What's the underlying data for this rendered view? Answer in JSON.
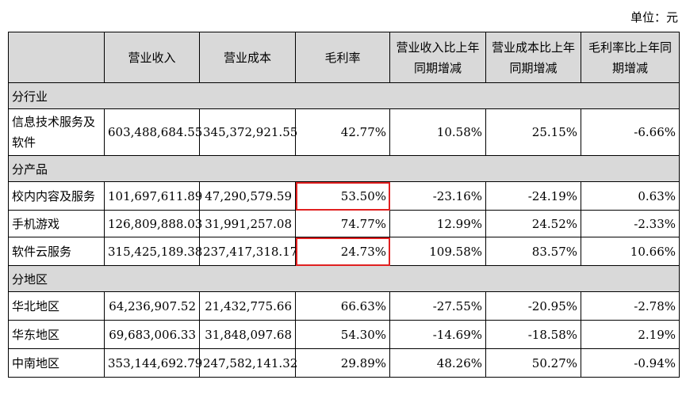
{
  "unit_label": "单位：元",
  "highlight_color": "#e02020",
  "header_bg": "#d9d9d9",
  "columns": [
    "",
    "营业收入",
    "营业成本",
    "毛利率",
    "营业收入比上年同期增减",
    "营业成本比上年同期增减",
    "毛利率比上年同期增减"
  ],
  "sections": [
    {
      "title": "分行业",
      "rows": [
        [
          "信息技术服务及软件",
          "603,488,684.55",
          "345,372,921.55",
          "42.77%",
          "10.58%",
          "25.15%",
          "-6.66%"
        ]
      ]
    },
    {
      "title": "分产品",
      "rows": [
        [
          "校内内容及服务",
          "101,697,611.89",
          "47,290,579.59",
          "53.50%",
          "-23.16%",
          "-24.19%",
          "0.63%"
        ],
        [
          "手机游戏",
          "126,809,888.03",
          "31,991,257.08",
          "74.77%",
          "12.99%",
          "24.52%",
          "-2.33%"
        ],
        [
          "软件云服务",
          "315,425,189.38",
          "237,417,318.17",
          "24.73%",
          "109.58%",
          "83.57%",
          "10.66%"
        ]
      ]
    },
    {
      "title": "分地区",
      "rows": [
        [
          "华北地区",
          "64,236,907.52",
          "21,432,775.66",
          "66.63%",
          "-27.55%",
          "-20.95%",
          "-2.78%"
        ],
        [
          "华东地区",
          "69,683,006.33",
          "31,848,097.68",
          "54.30%",
          "-14.69%",
          "-18.58%",
          "2.19%"
        ],
        [
          "中南地区",
          "353,144,692.79",
          "247,582,141.32",
          "29.89%",
          "48.26%",
          "50.27%",
          "-0.94%"
        ]
      ]
    }
  ]
}
